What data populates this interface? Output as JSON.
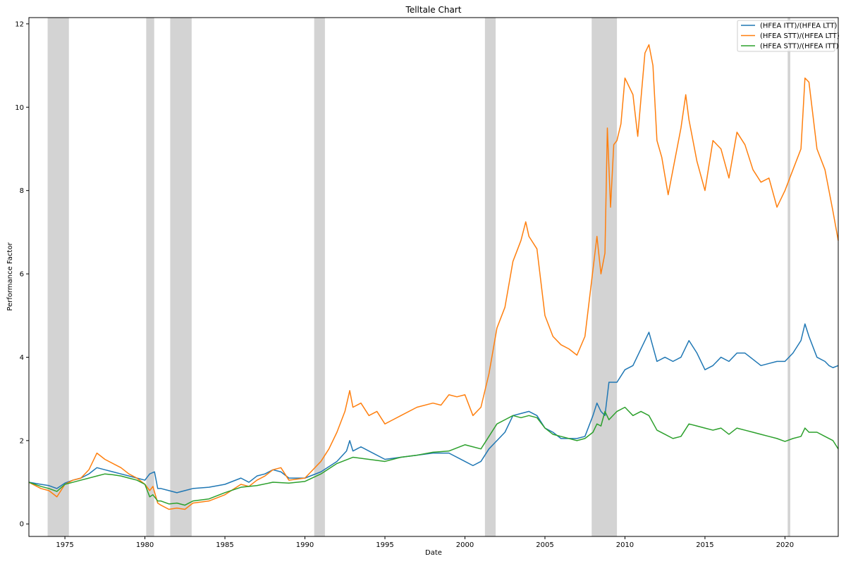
{
  "chart_data": {
    "type": "line",
    "title": "Telltale Chart",
    "xlabel": "Date",
    "ylabel": "Performance Factor",
    "xlim": [
      1972.75,
      2023.33
    ],
    "ylim": [
      -0.3,
      12.15
    ],
    "x_ticks": [
      1975,
      1980,
      1985,
      1990,
      1995,
      2000,
      2005,
      2010,
      2015,
      2020
    ],
    "x_tick_labels": [
      "1975",
      "1980",
      "1985",
      "1990",
      "1995",
      "2000",
      "2005",
      "2010",
      "2015",
      "2020"
    ],
    "y_ticks": [
      0,
      2,
      4,
      6,
      8,
      10,
      12
    ],
    "y_tick_labels": [
      "0",
      "2",
      "4",
      "6",
      "8",
      "10",
      "12"
    ],
    "grid": false,
    "legend_position": "top-right",
    "recession_bands": [
      [
        1973.92,
        1975.25
      ],
      [
        1980.08,
        1980.58
      ],
      [
        1981.58,
        1982.92
      ],
      [
        1990.58,
        1991.25
      ],
      [
        2001.25,
        2001.92
      ],
      [
        2007.92,
        2009.5
      ],
      [
        2020.17,
        2020.33
      ]
    ],
    "series": [
      {
        "name": "(HFEA ITT)/(HFEA LTT)",
        "color": "#1f77b4",
        "points": [
          [
            1972.75,
            1.0
          ],
          [
            1973.5,
            0.95
          ],
          [
            1974.0,
            0.92
          ],
          [
            1974.5,
            0.85
          ],
          [
            1975.0,
            0.98
          ],
          [
            1975.5,
            1.05
          ],
          [
            1976.0,
            1.1
          ],
          [
            1976.5,
            1.2
          ],
          [
            1977.0,
            1.35
          ],
          [
            1977.5,
            1.3
          ],
          [
            1978.0,
            1.25
          ],
          [
            1978.5,
            1.2
          ],
          [
            1979.0,
            1.15
          ],
          [
            1979.5,
            1.1
          ],
          [
            1980.0,
            1.05
          ],
          [
            1980.3,
            1.2
          ],
          [
            1980.6,
            1.25
          ],
          [
            1980.8,
            0.85
          ],
          [
            1981.0,
            0.85
          ],
          [
            1981.5,
            0.8
          ],
          [
            1982.0,
            0.75
          ],
          [
            1982.5,
            0.8
          ],
          [
            1983.0,
            0.85
          ],
          [
            1984.0,
            0.88
          ],
          [
            1985.0,
            0.95
          ],
          [
            1986.0,
            1.1
          ],
          [
            1986.5,
            1.0
          ],
          [
            1987.0,
            1.15
          ],
          [
            1987.5,
            1.2
          ],
          [
            1988.0,
            1.3
          ],
          [
            1988.5,
            1.25
          ],
          [
            1989.0,
            1.1
          ],
          [
            1990.0,
            1.1
          ],
          [
            1991.0,
            1.25
          ],
          [
            1992.0,
            1.5
          ],
          [
            1992.6,
            1.75
          ],
          [
            1992.8,
            2.0
          ],
          [
            1993.0,
            1.75
          ],
          [
            1993.5,
            1.85
          ],
          [
            1994.0,
            1.75
          ],
          [
            1995.0,
            1.55
          ],
          [
            1996.0,
            1.6
          ],
          [
            1997.0,
            1.65
          ],
          [
            1998.0,
            1.7
          ],
          [
            1999.0,
            1.7
          ],
          [
            2000.0,
            1.5
          ],
          [
            2000.5,
            1.4
          ],
          [
            2001.0,
            1.5
          ],
          [
            2001.5,
            1.8
          ],
          [
            2002.0,
            2.0
          ],
          [
            2002.5,
            2.2
          ],
          [
            2003.0,
            2.6
          ],
          [
            2003.5,
            2.65
          ],
          [
            2004.0,
            2.7
          ],
          [
            2004.5,
            2.6
          ],
          [
            2005.0,
            2.3
          ],
          [
            2005.5,
            2.2
          ],
          [
            2006.0,
            2.05
          ],
          [
            2007.0,
            2.05
          ],
          [
            2007.5,
            2.1
          ],
          [
            2008.0,
            2.6
          ],
          [
            2008.25,
            2.9
          ],
          [
            2008.5,
            2.7
          ],
          [
            2008.75,
            2.6
          ],
          [
            2009.0,
            3.4
          ],
          [
            2009.5,
            3.4
          ],
          [
            2010.0,
            3.7
          ],
          [
            2010.5,
            3.8
          ],
          [
            2011.0,
            4.2
          ],
          [
            2011.5,
            4.6
          ],
          [
            2012.0,
            3.9
          ],
          [
            2012.5,
            4.0
          ],
          [
            2013.0,
            3.9
          ],
          [
            2013.5,
            4.0
          ],
          [
            2014.0,
            4.4
          ],
          [
            2014.5,
            4.1
          ],
          [
            2015.0,
            3.7
          ],
          [
            2015.5,
            3.8
          ],
          [
            2016.0,
            4.0
          ],
          [
            2016.5,
            3.9
          ],
          [
            2017.0,
            4.1
          ],
          [
            2017.5,
            4.1
          ],
          [
            2018.0,
            3.95
          ],
          [
            2018.5,
            3.8
          ],
          [
            2019.0,
            3.85
          ],
          [
            2019.5,
            3.9
          ],
          [
            2020.0,
            3.9
          ],
          [
            2020.5,
            4.1
          ],
          [
            2021.0,
            4.4
          ],
          [
            2021.25,
            4.8
          ],
          [
            2021.5,
            4.5
          ],
          [
            2022.0,
            4.0
          ],
          [
            2022.5,
            3.9
          ],
          [
            2022.75,
            3.8
          ],
          [
            2023.0,
            3.75
          ],
          [
            2023.33,
            3.8
          ]
        ]
      },
      {
        "name": "(HFEA STT)/(HFEA LTT)",
        "color": "#ff7f0e",
        "points": [
          [
            1972.75,
            1.0
          ],
          [
            1973.5,
            0.85
          ],
          [
            1974.0,
            0.8
          ],
          [
            1974.5,
            0.65
          ],
          [
            1975.0,
            0.95
          ],
          [
            1975.5,
            1.05
          ],
          [
            1976.0,
            1.1
          ],
          [
            1976.5,
            1.3
          ],
          [
            1977.0,
            1.7
          ],
          [
            1977.5,
            1.55
          ],
          [
            1978.0,
            1.45
          ],
          [
            1978.5,
            1.35
          ],
          [
            1979.0,
            1.2
          ],
          [
            1979.5,
            1.1
          ],
          [
            1980.0,
            0.95
          ],
          [
            1980.3,
            0.8
          ],
          [
            1980.5,
            0.9
          ],
          [
            1980.8,
            0.5
          ],
          [
            1981.0,
            0.45
          ],
          [
            1981.5,
            0.35
          ],
          [
            1982.0,
            0.38
          ],
          [
            1982.5,
            0.35
          ],
          [
            1983.0,
            0.5
          ],
          [
            1984.0,
            0.55
          ],
          [
            1985.0,
            0.7
          ],
          [
            1986.0,
            0.95
          ],
          [
            1986.5,
            0.9
          ],
          [
            1987.0,
            1.05
          ],
          [
            1987.5,
            1.15
          ],
          [
            1988.0,
            1.3
          ],
          [
            1988.5,
            1.35
          ],
          [
            1989.0,
            1.05
          ],
          [
            1990.0,
            1.1
          ],
          [
            1990.5,
            1.3
          ],
          [
            1991.0,
            1.5
          ],
          [
            1991.5,
            1.8
          ],
          [
            1992.0,
            2.2
          ],
          [
            1992.5,
            2.7
          ],
          [
            1992.8,
            3.2
          ],
          [
            1993.0,
            2.8
          ],
          [
            1993.5,
            2.9
          ],
          [
            1994.0,
            2.6
          ],
          [
            1994.5,
            2.7
          ],
          [
            1995.0,
            2.4
          ],
          [
            1995.5,
            2.5
          ],
          [
            1996.0,
            2.6
          ],
          [
            1997.0,
            2.8
          ],
          [
            1998.0,
            2.9
          ],
          [
            1998.5,
            2.85
          ],
          [
            1999.0,
            3.1
          ],
          [
            1999.5,
            3.05
          ],
          [
            2000.0,
            3.1
          ],
          [
            2000.5,
            2.6
          ],
          [
            2001.0,
            2.8
          ],
          [
            2001.5,
            3.6
          ],
          [
            2002.0,
            4.7
          ],
          [
            2002.5,
            5.2
          ],
          [
            2003.0,
            6.3
          ],
          [
            2003.5,
            6.8
          ],
          [
            2003.8,
            7.25
          ],
          [
            2004.0,
            6.9
          ],
          [
            2004.5,
            6.6
          ],
          [
            2005.0,
            5.0
          ],
          [
            2005.5,
            4.5
          ],
          [
            2006.0,
            4.3
          ],
          [
            2006.5,
            4.2
          ],
          [
            2007.0,
            4.05
          ],
          [
            2007.5,
            4.5
          ],
          [
            2008.0,
            6.1
          ],
          [
            2008.25,
            6.9
          ],
          [
            2008.5,
            6.0
          ],
          [
            2008.75,
            6.5
          ],
          [
            2008.9,
            9.5
          ],
          [
            2009.1,
            7.6
          ],
          [
            2009.3,
            9.1
          ],
          [
            2009.5,
            9.2
          ],
          [
            2009.75,
            9.6
          ],
          [
            2010.0,
            10.7
          ],
          [
            2010.5,
            10.3
          ],
          [
            2010.8,
            9.3
          ],
          [
            2011.0,
            10.2
          ],
          [
            2011.25,
            11.3
          ],
          [
            2011.5,
            11.5
          ],
          [
            2011.75,
            11.0
          ],
          [
            2012.0,
            9.2
          ],
          [
            2012.3,
            8.8
          ],
          [
            2012.7,
            7.9
          ],
          [
            2013.0,
            8.5
          ],
          [
            2013.5,
            9.5
          ],
          [
            2013.8,
            10.3
          ],
          [
            2014.0,
            9.7
          ],
          [
            2014.5,
            8.7
          ],
          [
            2015.0,
            8.0
          ],
          [
            2015.5,
            9.2
          ],
          [
            2016.0,
            9.0
          ],
          [
            2016.5,
            8.3
          ],
          [
            2017.0,
            9.4
          ],
          [
            2017.5,
            9.1
          ],
          [
            2018.0,
            8.5
          ],
          [
            2018.5,
            8.2
          ],
          [
            2019.0,
            8.3
          ],
          [
            2019.5,
            7.6
          ],
          [
            2020.0,
            8.0
          ],
          [
            2020.5,
            8.5
          ],
          [
            2021.0,
            9.0
          ],
          [
            2021.25,
            10.7
          ],
          [
            2021.5,
            10.6
          ],
          [
            2022.0,
            9.0
          ],
          [
            2022.5,
            8.5
          ],
          [
            2023.0,
            7.5
          ],
          [
            2023.33,
            6.8
          ]
        ]
      },
      {
        "name": "(HFEA STT)/(HFEA ITT)",
        "color": "#2ca02c",
        "points": [
          [
            1972.75,
            1.0
          ],
          [
            1973.5,
            0.9
          ],
          [
            1974.0,
            0.85
          ],
          [
            1974.5,
            0.78
          ],
          [
            1975.0,
            0.95
          ],
          [
            1975.5,
            1.0
          ],
          [
            1976.0,
            1.05
          ],
          [
            1976.5,
            1.1
          ],
          [
            1977.0,
            1.15
          ],
          [
            1977.5,
            1.2
          ],
          [
            1978.0,
            1.18
          ],
          [
            1978.5,
            1.15
          ],
          [
            1979.0,
            1.1
          ],
          [
            1979.5,
            1.05
          ],
          [
            1980.0,
            0.95
          ],
          [
            1980.3,
            0.65
          ],
          [
            1980.5,
            0.7
          ],
          [
            1980.8,
            0.55
          ],
          [
            1981.0,
            0.55
          ],
          [
            1981.5,
            0.48
          ],
          [
            1982.0,
            0.5
          ],
          [
            1982.5,
            0.45
          ],
          [
            1983.0,
            0.55
          ],
          [
            1984.0,
            0.6
          ],
          [
            1985.0,
            0.75
          ],
          [
            1986.0,
            0.88
          ],
          [
            1987.0,
            0.92
          ],
          [
            1988.0,
            1.0
          ],
          [
            1989.0,
            0.98
          ],
          [
            1990.0,
            1.02
          ],
          [
            1991.0,
            1.2
          ],
          [
            1992.0,
            1.45
          ],
          [
            1993.0,
            1.6
          ],
          [
            1994.0,
            1.55
          ],
          [
            1995.0,
            1.5
          ],
          [
            1996.0,
            1.6
          ],
          [
            1997.0,
            1.65
          ],
          [
            1998.0,
            1.72
          ],
          [
            1999.0,
            1.75
          ],
          [
            2000.0,
            1.9
          ],
          [
            2001.0,
            1.8
          ],
          [
            2001.5,
            2.1
          ],
          [
            2002.0,
            2.4
          ],
          [
            2002.5,
            2.5
          ],
          [
            2003.0,
            2.6
          ],
          [
            2003.5,
            2.55
          ],
          [
            2004.0,
            2.6
          ],
          [
            2004.5,
            2.55
          ],
          [
            2005.0,
            2.3
          ],
          [
            2005.5,
            2.15
          ],
          [
            2006.0,
            2.1
          ],
          [
            2007.0,
            2.0
          ],
          [
            2007.5,
            2.05
          ],
          [
            2008.0,
            2.2
          ],
          [
            2008.25,
            2.4
          ],
          [
            2008.5,
            2.35
          ],
          [
            2008.75,
            2.7
          ],
          [
            2009.0,
            2.5
          ],
          [
            2009.5,
            2.7
          ],
          [
            2010.0,
            2.8
          ],
          [
            2010.5,
            2.6
          ],
          [
            2011.0,
            2.7
          ],
          [
            2011.5,
            2.6
          ],
          [
            2012.0,
            2.25
          ],
          [
            2012.5,
            2.15
          ],
          [
            2013.0,
            2.05
          ],
          [
            2013.5,
            2.1
          ],
          [
            2014.0,
            2.4
          ],
          [
            2014.5,
            2.35
          ],
          [
            2015.0,
            2.3
          ],
          [
            2015.5,
            2.25
          ],
          [
            2016.0,
            2.3
          ],
          [
            2016.5,
            2.15
          ],
          [
            2017.0,
            2.3
          ],
          [
            2017.5,
            2.25
          ],
          [
            2018.0,
            2.2
          ],
          [
            2018.5,
            2.15
          ],
          [
            2019.0,
            2.1
          ],
          [
            2019.5,
            2.05
          ],
          [
            2020.0,
            1.98
          ],
          [
            2020.5,
            2.05
          ],
          [
            2021.0,
            2.1
          ],
          [
            2021.25,
            2.3
          ],
          [
            2021.5,
            2.2
          ],
          [
            2022.0,
            2.2
          ],
          [
            2022.5,
            2.1
          ],
          [
            2023.0,
            2.0
          ],
          [
            2023.33,
            1.8
          ]
        ]
      }
    ]
  }
}
